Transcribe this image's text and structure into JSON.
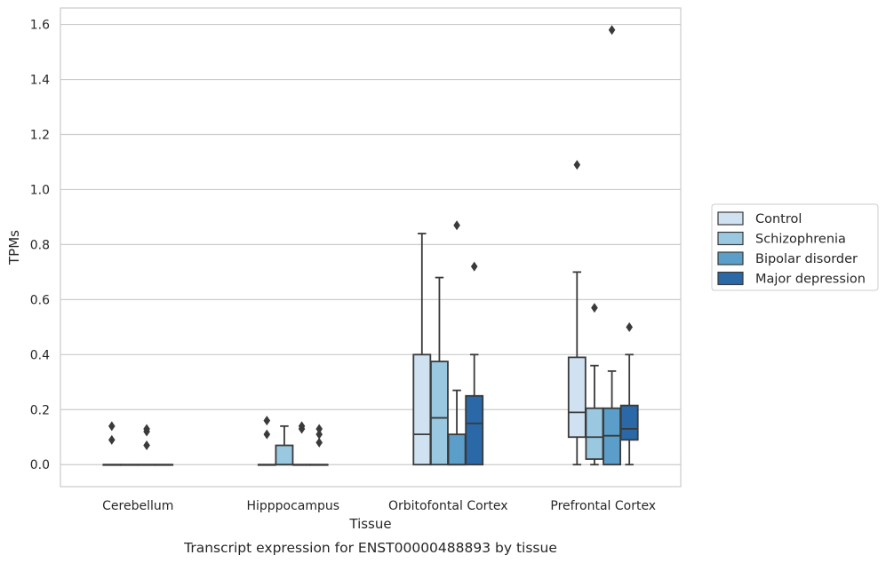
{
  "chart_data": {
    "type": "box",
    "title": "",
    "caption": "Transcript expression for ENST00000488893 by tissue",
    "xlabel": "Tissue",
    "ylabel": "TPMs",
    "ylim": [
      -0.08,
      1.66
    ],
    "yticks": [
      0.0,
      0.2,
      0.4,
      0.6,
      0.8,
      1.0,
      1.2,
      1.4,
      1.6
    ],
    "ytick_labels": [
      "0.0",
      "0.2",
      "0.4",
      "0.6",
      "0.8",
      "1.0",
      "1.2",
      "1.4",
      "1.6"
    ],
    "grid": true,
    "legend_position": "right",
    "categories": [
      "Cerebellum",
      "Hipppocampus",
      "Orbitofontal Cortex",
      "Prefrontal Cortex"
    ],
    "series": [
      {
        "name": "Control",
        "color": "#d0e2f2",
        "boxes": [
          {
            "whislo": 0,
            "q1": 0,
            "med": 0,
            "q3": 0,
            "whishi": 0,
            "fliers": [
              0.14,
              0.09
            ]
          },
          {
            "whislo": 0,
            "q1": 0,
            "med": 0,
            "q3": 0,
            "whishi": 0,
            "fliers": [
              0.16,
              0.11
            ]
          },
          {
            "whislo": 0,
            "q1": 0,
            "med": 0.11,
            "q3": 0.4,
            "whishi": 0.84,
            "fliers": []
          },
          {
            "whislo": 0,
            "q1": 0.1,
            "med": 0.19,
            "q3": 0.39,
            "whishi": 0.7,
            "fliers": [
              1.09
            ]
          }
        ]
      },
      {
        "name": "Schizophrenia",
        "color": "#9ac8e0",
        "boxes": [
          {
            "whislo": 0,
            "q1": 0,
            "med": 0,
            "q3": 0,
            "whishi": 0,
            "fliers": []
          },
          {
            "whislo": 0,
            "q1": 0,
            "med": 0,
            "q3": 0.07,
            "whishi": 0.14,
            "fliers": []
          },
          {
            "whislo": 0,
            "q1": 0,
            "med": 0.17,
            "q3": 0.375,
            "whishi": 0.68,
            "fliers": []
          },
          {
            "whislo": 0,
            "q1": 0.02,
            "med": 0.1,
            "q3": 0.205,
            "whishi": 0.36,
            "fliers": [
              0.57
            ]
          }
        ]
      },
      {
        "name": "Bipolar disorder",
        "color": "#5a9ec9",
        "boxes": [
          {
            "whislo": 0,
            "q1": 0,
            "med": 0,
            "q3": 0,
            "whishi": 0,
            "fliers": [
              0.13,
              0.12,
              0.07
            ]
          },
          {
            "whislo": 0,
            "q1": 0,
            "med": 0,
            "q3": 0,
            "whishi": 0,
            "fliers": [
              0.14,
              0.13
            ]
          },
          {
            "whislo": 0,
            "q1": 0,
            "med": 0,
            "q3": 0.11,
            "whishi": 0.27,
            "fliers": [
              0.87
            ]
          },
          {
            "whislo": 0,
            "q1": 0,
            "med": 0.105,
            "q3": 0.205,
            "whishi": 0.34,
            "fliers": [
              1.58
            ]
          }
        ]
      },
      {
        "name": "Major depression",
        "color": "#2a68a7",
        "boxes": [
          {
            "whislo": 0,
            "q1": 0,
            "med": 0,
            "q3": 0,
            "whishi": 0,
            "fliers": []
          },
          {
            "whislo": 0,
            "q1": 0,
            "med": 0,
            "q3": 0,
            "whishi": 0,
            "fliers": [
              0.13,
              0.11,
              0.08
            ]
          },
          {
            "whislo": 0,
            "q1": 0,
            "med": 0.15,
            "q3": 0.25,
            "whishi": 0.4,
            "fliers": [
              0.72
            ]
          },
          {
            "whislo": 0,
            "q1": 0.09,
            "med": 0.13,
            "q3": 0.215,
            "whishi": 0.4,
            "fliers": [
              0.5
            ]
          }
        ]
      }
    ]
  }
}
